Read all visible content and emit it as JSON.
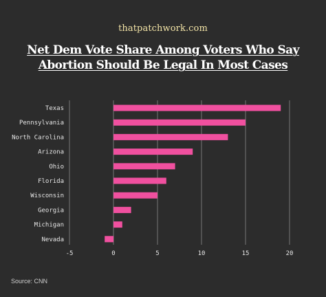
{
  "header": {
    "brand": "thatpatchwork.com",
    "title_line1": "Net Dem Vote Share Among Voters Who Say",
    "title_line2": "Abortion Should Be Legal In Most Cases"
  },
  "footer": {
    "source": "Source: CNN"
  },
  "colors": {
    "background": "#2c2c2c",
    "bar": "#f0509f",
    "grid": "#8a8a8a",
    "text": "#e8e8e8"
  },
  "chart_data": {
    "type": "bar",
    "orientation": "horizontal",
    "title": "Net Dem Vote Share Among Voters Who Say Abortion Should Be Legal In Most Cases",
    "xlabel": "",
    "ylabel": "",
    "categories": [
      "Texas",
      "Pennsylvania",
      "North Carolina",
      "Arizona",
      "Ohio",
      "Florida",
      "Wisconsin",
      "Georgia",
      "Michigan",
      "Nevada"
    ],
    "values": [
      19,
      15,
      13,
      9,
      7,
      6,
      5,
      2,
      1,
      -1
    ],
    "xlim": [
      -5,
      20
    ],
    "xticks": [
      -5,
      0,
      5,
      10,
      15,
      20
    ],
    "grid": "vertical"
  }
}
